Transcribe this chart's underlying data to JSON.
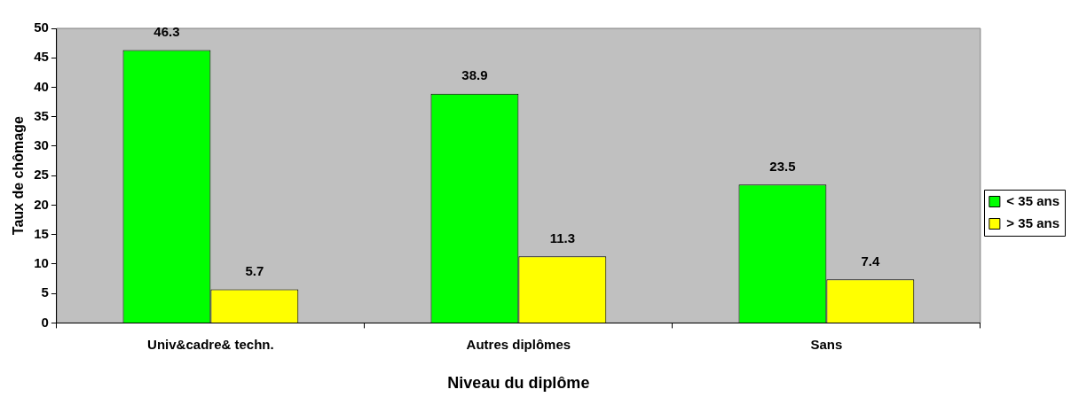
{
  "chart_data": {
    "type": "bar",
    "xlabel": "Niveau du diplôme",
    "ylabel": "Taux de chômage",
    "categories": [
      "Univ&cadre& techn.",
      "Autres diplômes",
      "Sans"
    ],
    "series": [
      {
        "name": "< 35 ans",
        "color": "#00ff00",
        "values": [
          46.3,
          38.9,
          23.5
        ]
      },
      {
        "name": "> 35 ans",
        "color": "#ffff00",
        "values": [
          5.7,
          11.3,
          7.4
        ]
      }
    ],
    "ylim": [
      0,
      50
    ],
    "yticks": [
      0,
      5,
      10,
      15,
      20,
      25,
      30,
      35,
      40,
      45,
      50
    ],
    "grid": false,
    "legend": "right",
    "data_labels": true
  }
}
